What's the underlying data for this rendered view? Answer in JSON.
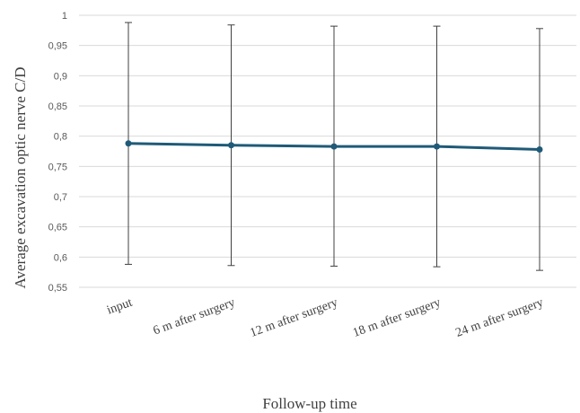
{
  "chart_data": {
    "type": "line",
    "xlabel": "Follow-up time",
    "ylabel": "Average excavation optic nerve C/D",
    "categories": [
      "input",
      "6 m after surgery",
      "12 m after surgery",
      "18 m after surgery",
      "24 m after surgery"
    ],
    "series": [
      {
        "values": [
          0.788,
          0.785,
          0.783,
          0.783,
          0.778
        ],
        "error_low": [
          0.588,
          0.586,
          0.585,
          0.584,
          0.578
        ],
        "error_high": [
          0.988,
          0.984,
          0.982,
          0.982,
          0.978
        ],
        "color": "#1f5a78"
      }
    ],
    "ylim": [
      0.55,
      1
    ],
    "yticks": [
      {
        "value": 0.55,
        "label": "0,55"
      },
      {
        "value": 0.6,
        "label": "0,6"
      },
      {
        "value": 0.65,
        "label": "0,65"
      },
      {
        "value": 0.7,
        "label": "0,7"
      },
      {
        "value": 0.75,
        "label": "0,75"
      },
      {
        "value": 0.8,
        "label": "0,8"
      },
      {
        "value": 0.85,
        "label": "0,85"
      },
      {
        "value": 0.9,
        "label": "0,9"
      },
      {
        "value": 0.95,
        "label": "0,95"
      },
      {
        "value": 1,
        "label": "1"
      }
    ],
    "grid": true,
    "legend": "none",
    "colors": {
      "gridline": "#d9d9d9",
      "errorbar": "#404040"
    }
  }
}
